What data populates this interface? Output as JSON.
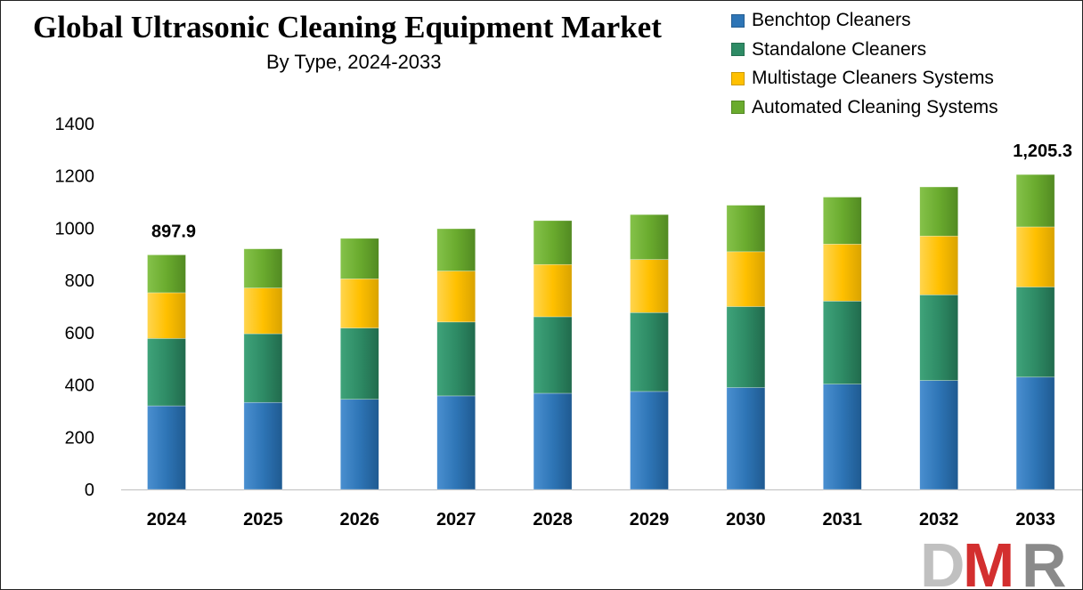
{
  "chart_data": {
    "type": "bar",
    "stacked": true,
    "title": "Global Ultrasonic Cleaning Equipment Market",
    "subtitle": "By Type, 2024-2033",
    "categories": [
      "2024",
      "2025",
      "2026",
      "2027",
      "2028",
      "2029",
      "2030",
      "2031",
      "2032",
      "2033"
    ],
    "series": [
      {
        "name": "Benchtop Cleaners",
        "color": "#2E75B6",
        "values": [
          320,
          333,
          345,
          358,
          368,
          375,
          390,
          403,
          417,
          430
        ]
      },
      {
        "name": "Standalone Cleaners",
        "color": "#2E8B65",
        "values": [
          258,
          263,
          273,
          283,
          293,
          302,
          310,
          318,
          328,
          345
        ]
      },
      {
        "name": "Multistage Cleaners Systems",
        "color": "#FFC000",
        "values": [
          175,
          175,
          188,
          195,
          200,
          203,
          210,
          218,
          225,
          230
        ]
      },
      {
        "name": "Automated Cleaning Systems",
        "color": "#6AAB2E",
        "values": [
          144.9,
          150,
          155,
          162,
          168,
          172,
          178,
          180,
          188,
          200.3
        ]
      }
    ],
    "totals_labels": [
      {
        "category": "2024",
        "text": "897.9",
        "value": 897.9
      },
      {
        "category": "2033",
        "text": "1,205.3",
        "value": 1205.3
      }
    ],
    "ylim": [
      0,
      1400
    ],
    "yticks": [
      0,
      200,
      400,
      600,
      800,
      1000,
      1200,
      1400
    ],
    "xlabel": "",
    "ylabel": "",
    "grid": false,
    "legend_position": "top-right"
  },
  "logo": {
    "text": "DMR",
    "color_d": "#c0c0c0",
    "color_m": "#d32f2f",
    "color_r": "#8a8a8a"
  }
}
